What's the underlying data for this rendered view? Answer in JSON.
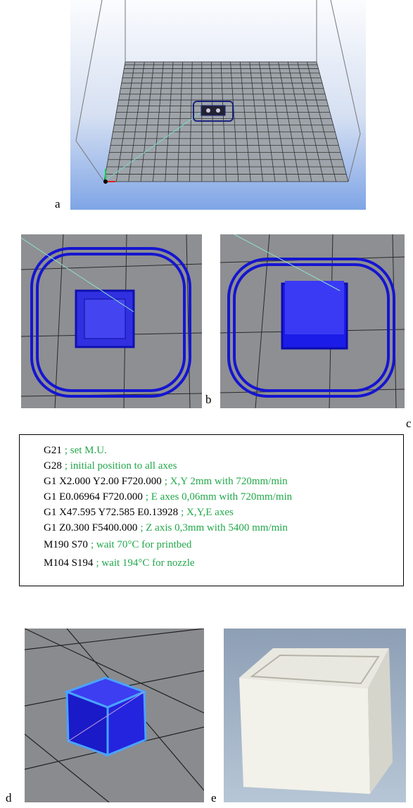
{
  "labels": {
    "a": "a",
    "b": "b",
    "c": "c",
    "d": "d",
    "e": "e"
  },
  "gcode": [
    {
      "command": "G21",
      "comment": "; set M.U."
    },
    {
      "command": "G28",
      "comment": "; initial position to all axes"
    },
    {
      "command": "G1 X2.000 Y2.00 F720.000",
      "comment": "; X,Y 2mm with 720mm/min"
    },
    {
      "command": "G1 E0.06964 F720.000",
      "comment": "; E axes 0,06mm with 720mm/min"
    },
    {
      "command": "G1 X47.595 Y72.585 E0.13928",
      "comment": "; X,Y,E axes"
    },
    {
      "command": "G1 Z0.300 F5400.000",
      "comment": "; Z axis 0,3mm with 5400 mm/min"
    },
    {
      "command": "M190 S70",
      "comment": "; wait 70°C for printbed"
    },
    {
      "command": "M104 S194",
      "comment": "; wait 194°C for nozzle"
    }
  ]
}
